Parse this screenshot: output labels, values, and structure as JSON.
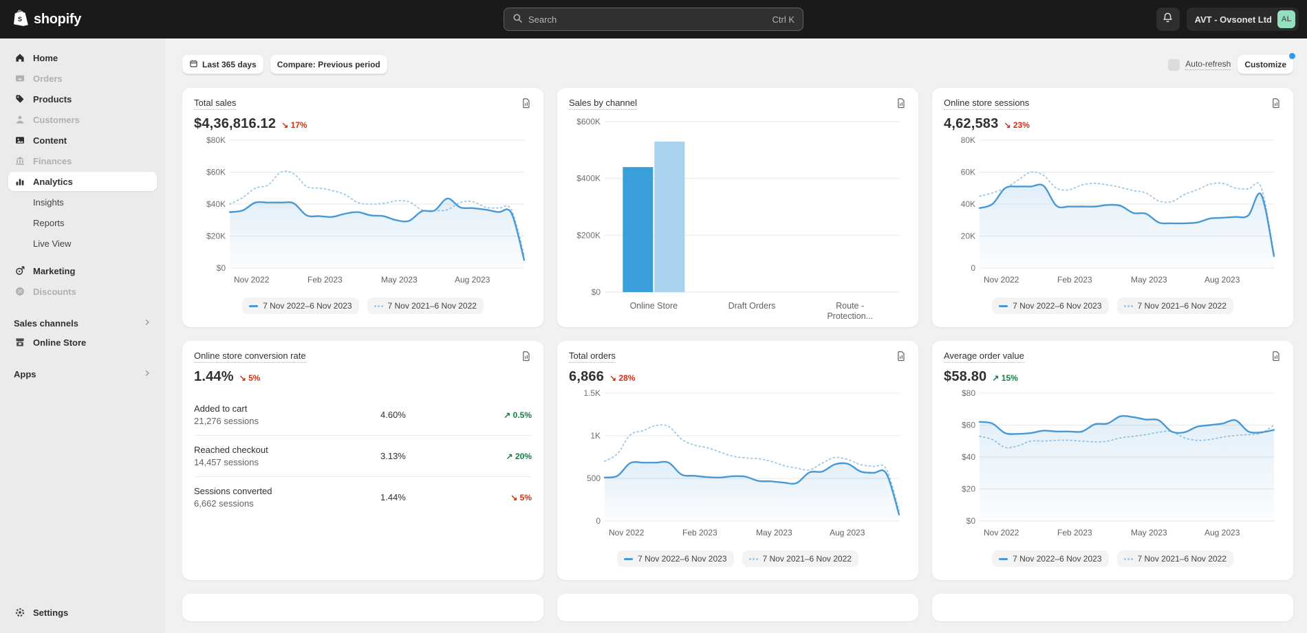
{
  "colors": {
    "chart_current": "#4798d7",
    "chart_previous": "#9ec8e3",
    "bar_current": "#399fd9",
    "bar_previous": "#a8d2ee",
    "positive": "#108043",
    "negative": "#d72c0d",
    "notification_dot": "#2c9af0",
    "avatar_bg": "#95dfc1"
  },
  "topbar": {
    "brand": "shopify",
    "search_placeholder": "Search",
    "search_shortcut": "Ctrl K",
    "store_name": "AVT - Ovsonet Ltd",
    "avatar_initials": "AL"
  },
  "sidebar": {
    "items": [
      {
        "label": "Home",
        "icon": "home-icon",
        "state": "default"
      },
      {
        "label": "Orders",
        "icon": "orders-icon",
        "state": "disabled"
      },
      {
        "label": "Products",
        "icon": "products-icon",
        "state": "default"
      },
      {
        "label": "Customers",
        "icon": "customers-icon",
        "state": "disabled"
      },
      {
        "label": "Content",
        "icon": "content-icon",
        "state": "default"
      },
      {
        "label": "Finances",
        "icon": "finances-icon",
        "state": "disabled"
      },
      {
        "label": "Analytics",
        "icon": "analytics-icon",
        "state": "active"
      },
      {
        "label": "Insights",
        "icon": null,
        "state": "sub"
      },
      {
        "label": "Reports",
        "icon": null,
        "state": "sub"
      },
      {
        "label": "Live View",
        "icon": null,
        "state": "sub"
      },
      {
        "label": "Marketing",
        "icon": "marketing-icon",
        "state": "default"
      },
      {
        "label": "Discounts",
        "icon": "discounts-icon",
        "state": "disabled"
      }
    ],
    "sales_channels_label": "Sales channels",
    "online_store_label": "Online Store",
    "apps_label": "Apps",
    "settings_label": "Settings"
  },
  "header": {
    "title": "Analytics",
    "fullscreen_label": "Fullscreen"
  },
  "controls": {
    "date_range_label": "Last 365 days",
    "compare_label": "Compare: Previous period",
    "auto_refresh_label": "Auto-refresh",
    "customize_label": "Customize"
  },
  "legend": {
    "current_label": "7 Nov 2022–6 Nov 2023",
    "previous_label": "7 Nov 2021–6 Nov 2022"
  },
  "cards": [
    {
      "id": "total-sales",
      "title": "Total sales",
      "value": "$4,36,816.12",
      "delta": {
        "direction": "down",
        "label": "17%"
      },
      "chart_data": {
        "type": "line",
        "x_labels": [
          "Nov 2022",
          "Feb 2023",
          "May 2023",
          "Aug 2023"
        ],
        "ylim": [
          0,
          80000
        ],
        "y_ticks": [
          {
            "v": 80000,
            "label": "$80K"
          },
          {
            "v": 60000,
            "label": "$60K"
          },
          {
            "v": 40000,
            "label": "$40K"
          },
          {
            "v": 20000,
            "label": "$20K"
          },
          {
            "v": 0,
            "label": "$0"
          }
        ],
        "series": [
          {
            "name": "7 Nov 2022–6 Nov 2023",
            "style": "solid",
            "values": [
              35000,
              36000,
              41000,
              41000,
              41000,
              40500,
              33000,
              32500,
              32000,
              34000,
              35000,
              33000,
              32500,
              30000,
              29500,
              35500,
              36000,
              43500,
              38000,
              37500,
              36500,
              35000,
              34500,
              5000
            ]
          },
          {
            "name": "7 Nov 2021–6 Nov 2022",
            "style": "dotted",
            "values": [
              40000,
              44000,
              50000,
              52000,
              60000,
              59000,
              51000,
              50000,
              48500,
              46000,
              41000,
              40000,
              40500,
              42000,
              41500,
              36500,
              36000,
              36500,
              41000,
              41500,
              38000,
              37500,
              36500,
              8000
            ]
          }
        ],
        "legend_position": "bottom-center"
      }
    },
    {
      "id": "sales-by-channel",
      "title": "Sales by channel",
      "value": null,
      "delta": null,
      "chart_data": {
        "type": "bar",
        "categories": [
          "Online Store",
          "Draft Orders",
          "Route -\nProtection..."
        ],
        "ylim": [
          0,
          600000
        ],
        "y_ticks": [
          {
            "v": 600000,
            "label": "$600K"
          },
          {
            "v": 400000,
            "label": "$400K"
          },
          {
            "v": 200000,
            "label": "$200K"
          },
          {
            "v": 0,
            "label": "$0"
          }
        ],
        "series": [
          {
            "name": "7 Nov 2022–6 Nov 2023",
            "values": [
              440000,
              0,
              0
            ]
          },
          {
            "name": "7 Nov 2021–6 Nov 2022",
            "values": [
              530000,
              0,
              0
            ]
          }
        ]
      }
    },
    {
      "id": "online-store-sessions",
      "title": "Online store sessions",
      "value": "4,62,583",
      "delta": {
        "direction": "down",
        "label": "23%"
      },
      "chart_data": {
        "type": "line",
        "x_labels": [
          "Nov 2022",
          "Feb 2023",
          "May 2023",
          "Aug 2023"
        ],
        "ylim": [
          0,
          80000
        ],
        "y_ticks": [
          {
            "v": 80000,
            "label": "80K"
          },
          {
            "v": 60000,
            "label": "60K"
          },
          {
            "v": 40000,
            "label": "40K"
          },
          {
            "v": 20000,
            "label": "20K"
          },
          {
            "v": 0,
            "label": "0"
          }
        ],
        "series": [
          {
            "name": "7 Nov 2022–6 Nov 2023",
            "style": "solid",
            "values": [
              37500,
              40000,
              50000,
              51000,
              51000,
              51500,
              39000,
              38500,
              38500,
              38500,
              39500,
              39000,
              34500,
              34000,
              28500,
              28000,
              28000,
              28500,
              31000,
              31500,
              32000,
              33000,
              46000,
              7500
            ]
          },
          {
            "name": "7 Nov 2021–6 Nov 2022",
            "style": "dotted",
            "values": [
              45000,
              47000,
              50000,
              55000,
              60000,
              58000,
              50000,
              49000,
              52000,
              53000,
              52000,
              50500,
              48500,
              47000,
              42000,
              41500,
              46000,
              49000,
              52500,
              53000,
              50000,
              49500,
              50500,
              9000
            ]
          }
        ],
        "legend_position": "bottom-center"
      }
    },
    {
      "id": "conversion-rate",
      "title": "Online store conversion rate",
      "value": "1.44%",
      "delta": {
        "direction": "down",
        "label": "5%"
      },
      "funnel_rows": [
        {
          "label": "Added to cart",
          "sessions": "21,276 sessions",
          "rate": "4.60%",
          "delta": {
            "direction": "up",
            "label": "0.5%"
          }
        },
        {
          "label": "Reached checkout",
          "sessions": "14,457 sessions",
          "rate": "3.13%",
          "delta": {
            "direction": "up",
            "label": "20%"
          }
        },
        {
          "label": "Sessions converted",
          "sessions": "6,662 sessions",
          "rate": "1.44%",
          "delta": {
            "direction": "down",
            "label": "5%"
          }
        }
      ]
    },
    {
      "id": "total-orders",
      "title": "Total orders",
      "value": "6,866",
      "delta": {
        "direction": "down",
        "label": "28%"
      },
      "chart_data": {
        "type": "line",
        "x_labels": [
          "Nov 2022",
          "Feb 2023",
          "May 2023",
          "Aug 2023"
        ],
        "ylim": [
          0,
          1500
        ],
        "y_ticks": [
          {
            "v": 1500,
            "label": "1.5K"
          },
          {
            "v": 1000,
            "label": "1K"
          },
          {
            "v": 500,
            "label": "500"
          },
          {
            "v": 0,
            "label": "0"
          }
        ],
        "series": [
          {
            "name": "7 Nov 2022–6 Nov 2023",
            "style": "solid",
            "values": [
              510,
              530,
              680,
              685,
              685,
              685,
              545,
              530,
              515,
              510,
              525,
              520,
              470,
              465,
              450,
              445,
              570,
              580,
              665,
              670,
              580,
              565,
              558,
              75
            ]
          },
          {
            "name": "7 Nov 2021–6 Nov 2022",
            "style": "dotted",
            "values": [
              700,
              790,
              1010,
              1060,
              1120,
              1110,
              960,
              890,
              860,
              810,
              760,
              740,
              730,
              700,
              650,
              620,
              600,
              680,
              745,
              720,
              660,
              640,
              610,
              120
            ]
          }
        ],
        "legend_position": "bottom-center"
      }
    },
    {
      "id": "average-order-value",
      "title": "Average order value",
      "value": "$58.80",
      "delta": {
        "direction": "up",
        "label": "15%"
      },
      "chart_data": {
        "type": "line",
        "x_labels": [
          "Nov 2022",
          "Feb 2023",
          "May 2023",
          "Aug 2023"
        ],
        "ylim": [
          0,
          80
        ],
        "y_ticks": [
          {
            "v": 80,
            "label": "$80"
          },
          {
            "v": 60,
            "label": "$60"
          },
          {
            "v": 40,
            "label": "$40"
          },
          {
            "v": 20,
            "label": "$20"
          },
          {
            "v": 0,
            "label": "$0"
          }
        ],
        "series": [
          {
            "name": "7 Nov 2022–6 Nov 2023",
            "style": "solid",
            "values": [
              62,
              61,
              55,
              54.5,
              55,
              56.5,
              56,
              56,
              56,
              60.5,
              61,
              65.5,
              65,
              63.5,
              63,
              56,
              55.5,
              59,
              60,
              61,
              63,
              56,
              55.5,
              57
            ]
          },
          {
            "name": "7 Nov 2021–6 Nov 2022",
            "style": "dotted",
            "values": [
              53,
              51,
              46,
              47,
              50,
              50,
              50.5,
              50.5,
              50,
              49.5,
              50,
              52,
              53,
              54,
              55.5,
              56,
              52,
              50.5,
              51,
              52.5,
              53.5,
              54,
              55,
              60
            ]
          }
        ],
        "legend_position": "bottom-center"
      }
    }
  ]
}
